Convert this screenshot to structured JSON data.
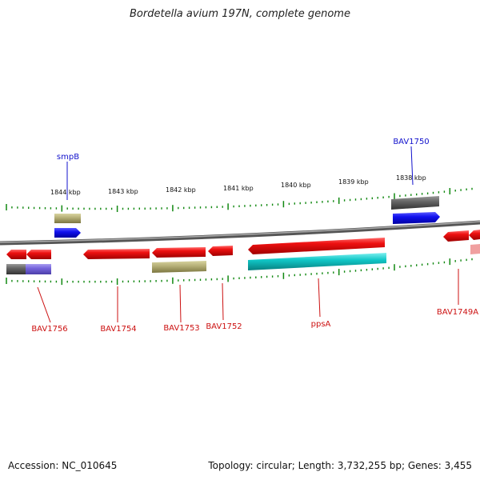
{
  "title": "Bordetella avium 197N, complete genome",
  "footer": {
    "accession": "Accession: NC_010645",
    "stats": "Topology: circular; Length: 3,732,255 bp; Genes: 3,455"
  },
  "colors": {
    "gene_red": "#ee1111",
    "gene_blue": "#1111ee",
    "gene_olive": "#b8b27a",
    "gene_gray": "#666666",
    "gene_cyan": "#11c8c8",
    "gene_purple": "#7766dd",
    "tick_green": "#118811",
    "label_blue": "#1111cc",
    "label_red": "#cc1111"
  },
  "scale_ticks": [
    {
      "label": "1844 kbp"
    },
    {
      "label": "1843 kbp"
    },
    {
      "label": "1842 kbp"
    },
    {
      "label": "1841 kbp"
    },
    {
      "label": "1840 kbp"
    },
    {
      "label": "1839 kbp"
    },
    {
      "label": "1838 kbp"
    }
  ],
  "gene_labels": [
    {
      "name": "smpB",
      "color": "blue"
    },
    {
      "name": "BAV1750",
      "color": "blue"
    },
    {
      "name": "BAV1756",
      "color": "red"
    },
    {
      "name": "BAV1754",
      "color": "red"
    },
    {
      "name": "BAV1753",
      "color": "red"
    },
    {
      "name": "BAV1752",
      "color": "red"
    },
    {
      "name": "ppsA",
      "color": "red"
    },
    {
      "name": "BAV1749A",
      "color": "red"
    }
  ]
}
